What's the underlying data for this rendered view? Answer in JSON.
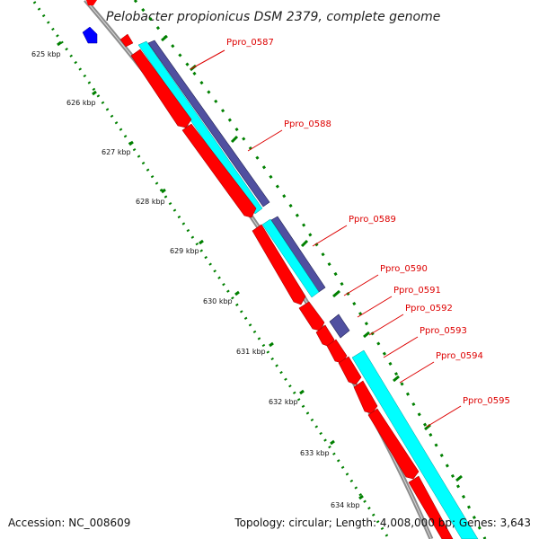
{
  "title": "Pelobacter propionicus DSM 2379, complete genome",
  "footer": {
    "accession": "Accession: NC_008609",
    "summary": "Topology: circular; Length: 4,008,000 bp; Genes: 3,643"
  },
  "tick_labels": [
    "625 kbp",
    "626 kbp",
    "627 kbp",
    "628 kbp",
    "629 kbp",
    "630 kbp",
    "631 kbp",
    "632 kbp",
    "633 kbp",
    "634 kbp"
  ],
  "gene_labels": [
    "Ppro_0587",
    "Ppro_0588",
    "Ppro_0589",
    "Ppro_0590",
    "Ppro_0591",
    "Ppro_0592",
    "Ppro_0593",
    "Ppro_0594",
    "Ppro_0595"
  ],
  "colors": {
    "backbone": "#8c8c8c",
    "cds": "#ff0000",
    "mrna": "#00ffff",
    "rna_feature": "#5050a0",
    "other_strand_feature": "#0000ff",
    "tick_marks": "#008000",
    "label_lines": "#dd0000"
  }
}
